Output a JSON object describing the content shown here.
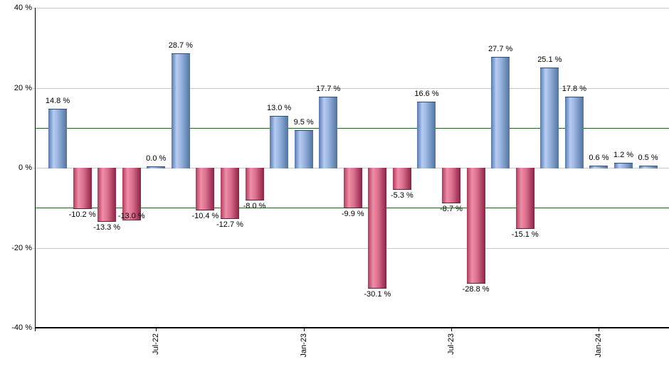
{
  "chart_data": {
    "type": "bar",
    "title": "",
    "unit": "%",
    "values": [
      14.8,
      -10.2,
      -13.3,
      -13.0,
      0.0,
      28.7,
      -10.4,
      -12.7,
      -8.0,
      13.0,
      9.5,
      17.7,
      -9.9,
      -30.1,
      -5.3,
      16.6,
      -8.7,
      -28.8,
      27.7,
      -15.1,
      25.1,
      17.8,
      0.6,
      1.2,
      0.5
    ],
    "bar_labels": [
      "14.8 %",
      "-10.2 %",
      "-13.3 %",
      "-13.0 %",
      "0.0 %",
      "28.7 %",
      "-10.4 %",
      "-12.7 %",
      "-8.0 %",
      "13.0 %",
      "9.5 %",
      "17.7 %",
      "-9.9 %",
      "-30.1 %",
      "-5.3 %",
      "16.6 %",
      "-8.7 %",
      "-28.8 %",
      "27.7 %",
      "-15.1 %",
      "25.1 %",
      "17.8 %",
      "0.6 %",
      "1.2 %",
      "0.5 %"
    ],
    "ylim": [
      -40,
      40
    ],
    "grid": true,
    "legend": "none",
    "y_ticks": [
      {
        "label": "40 %",
        "value": 40
      },
      {
        "label": "20 %",
        "value": 20
      },
      {
        "label": "0 %",
        "value": 0
      },
      {
        "label": "-20 %",
        "value": -20
      },
      {
        "label": "-40 %",
        "value": -40
      }
    ],
    "x_ticks": [
      {
        "label": "Jul-22",
        "bar_index": 4
      },
      {
        "label": "Jan-23",
        "bar_index": 10
      },
      {
        "label": "Jul-23",
        "bar_index": 16
      },
      {
        "label": "Jan-24",
        "bar_index": 22
      }
    ],
    "reference_lines": [
      10,
      -10
    ],
    "colors": {
      "positive_bar_edge": "#5578b0",
      "positive_bar_highlight": "#b6cdf2",
      "positive_bar_mid": "#93b0dc",
      "positive_bar_end": "#52739f",
      "positive_bar_cap": "#2e4d7d",
      "negative_bar_edge": "#b03a5c",
      "negative_bar_highlight": "#ef8ea9",
      "negative_bar_mid": "#d96e8d",
      "negative_bar_end": "#8e2144",
      "negative_bar_cap": "#701936",
      "reference_line": "#007b00",
      "gridline": "#c9c9c9",
      "axis": "#000000",
      "text": "#000000",
      "background": "#ffffff"
    }
  }
}
